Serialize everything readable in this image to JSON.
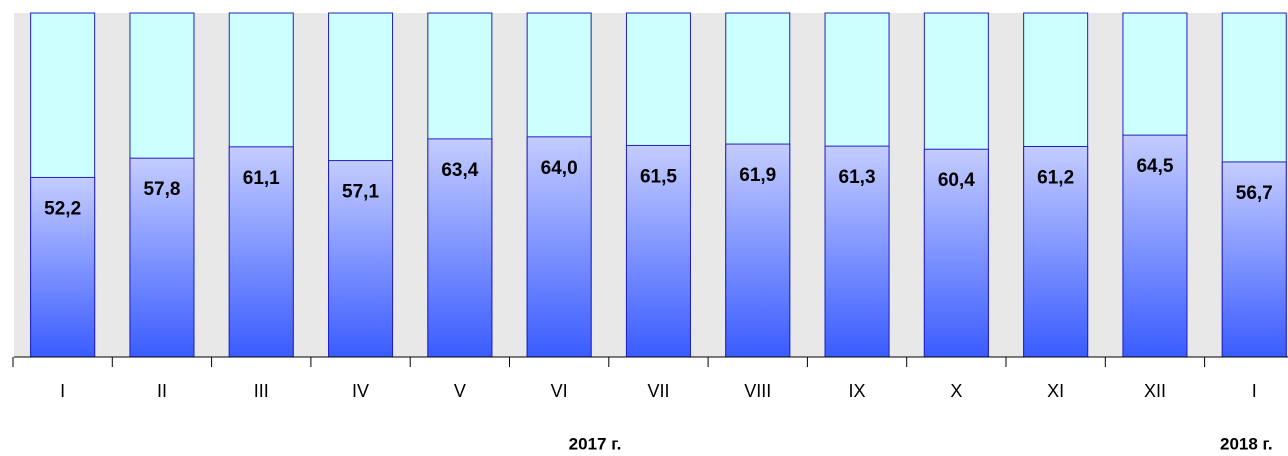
{
  "chart_data": {
    "type": "bar",
    "categories": [
      "I",
      "II",
      "III",
      "IV",
      "V",
      "VI",
      "VII",
      "VIII",
      "IX",
      "X",
      "XI",
      "XII",
      "I"
    ],
    "values": [
      52.2,
      57.8,
      61.1,
      57.1,
      63.4,
      64.0,
      61.5,
      61.9,
      61.3,
      60.4,
      61.2,
      64.5,
      56.7
    ],
    "value_labels": [
      "52,2",
      "57,8",
      "61,1",
      "57,1",
      "63,4",
      "64,0",
      "61,5",
      "61,9",
      "61,3",
      "60,4",
      "61,2",
      "64,5",
      "56,7"
    ],
    "annotations": [
      "2017 г.",
      "2018 г."
    ],
    "color": "#3a5cff",
    "ylim": [
      0,
      100
    ]
  }
}
